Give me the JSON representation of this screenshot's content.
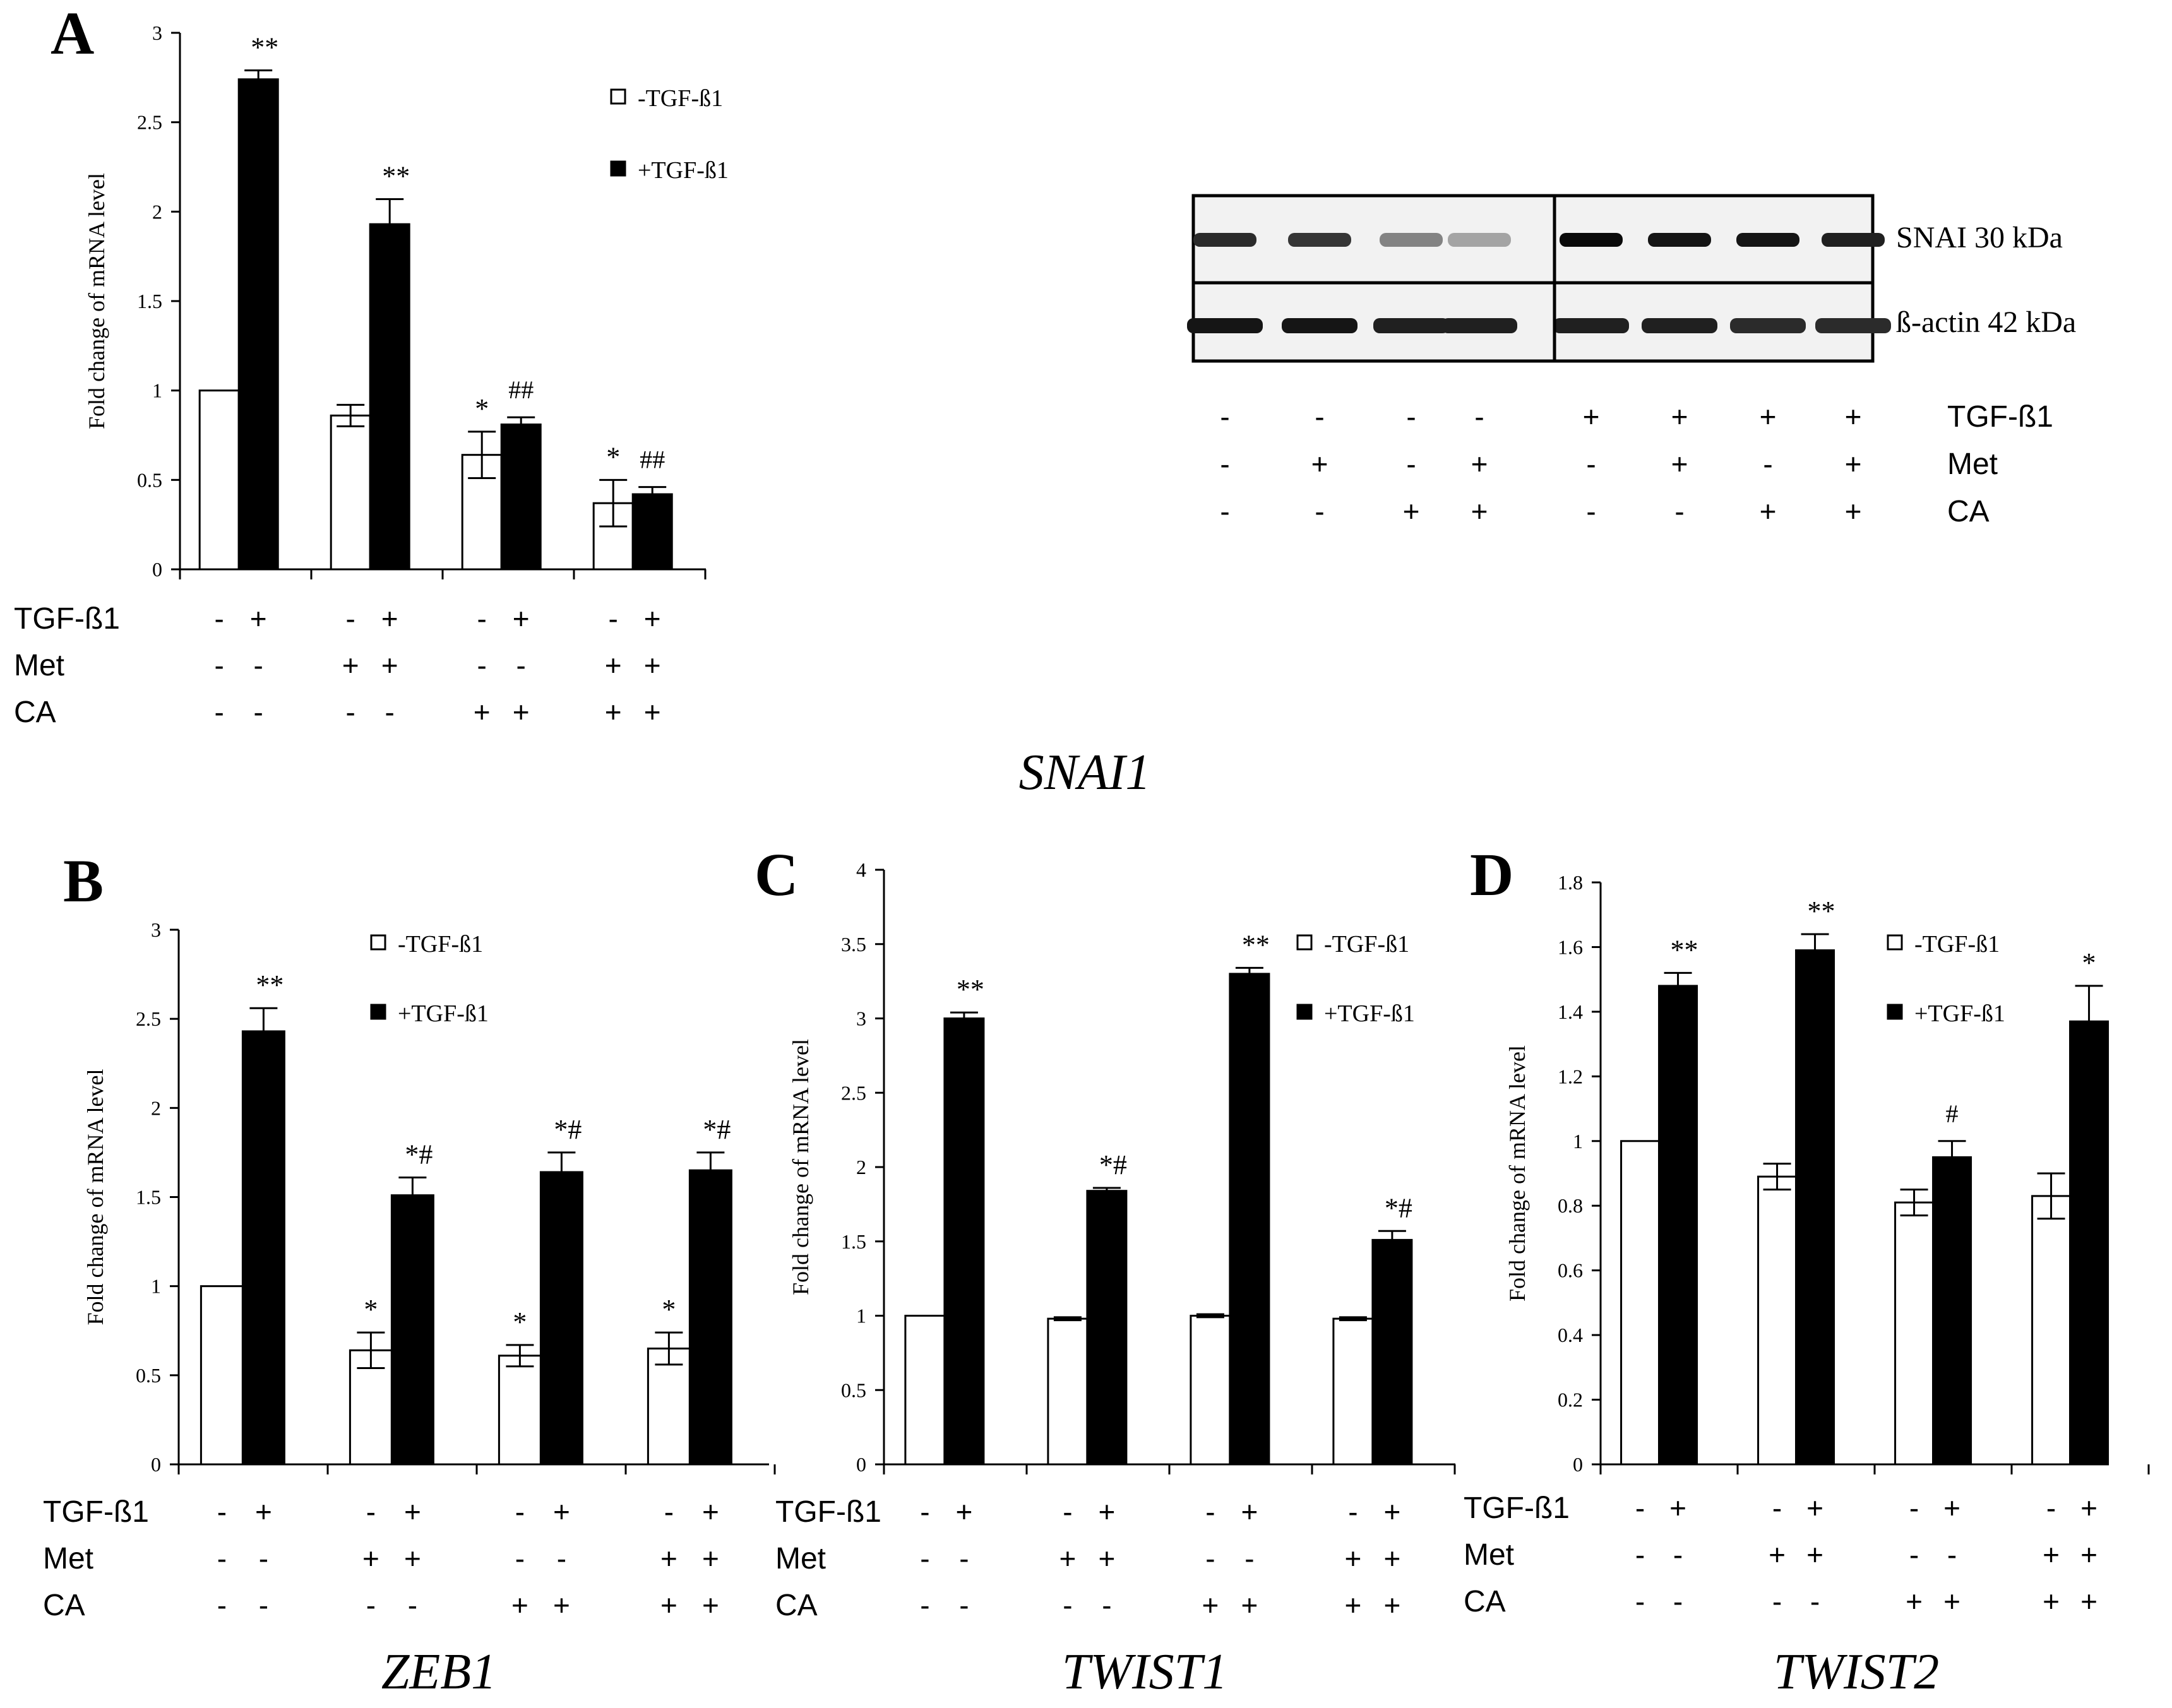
{
  "chart_data": [
    {
      "panel": "A",
      "type": "bar",
      "title": "SNAI1",
      "ylabel": "Fold change of mRNA level",
      "ylim": [
        0,
        3
      ],
      "yticks": [
        "0",
        "0.5",
        "1",
        "1.5",
        "2",
        "2.5",
        "3"
      ],
      "legend": [
        "-TGF-ß1",
        "+TGF-ß1"
      ],
      "legend_position": "top-right",
      "series": [
        {
          "name": "-TGF-ß1",
          "color": "#ffffff",
          "values": [
            1.0,
            0.86,
            0.64,
            0.37
          ],
          "errors": [
            0,
            0.06,
            0.13,
            0.13
          ],
          "annotations": [
            "",
            "",
            "*",
            "*"
          ]
        },
        {
          "name": "+TGF-ß1",
          "color": "#000000",
          "values": [
            2.74,
            1.93,
            0.81,
            0.42
          ],
          "errors": [
            0.05,
            0.14,
            0.04,
            0.04
          ],
          "annotations": [
            "**",
            "**",
            "##",
            "##"
          ]
        }
      ],
      "conditions": [
        {
          "label": "TGF-ß1",
          "marks": [
            "-",
            "+",
            "-",
            "+",
            "-",
            "+",
            "-",
            "+"
          ]
        },
        {
          "label": "Met",
          "marks": [
            "-",
            "-",
            "+",
            "+",
            "-",
            "-",
            "+",
            "+"
          ]
        },
        {
          "label": "CA",
          "marks": [
            "-",
            "-",
            "-",
            "-",
            "+",
            "+",
            "+",
            "+"
          ]
        }
      ]
    },
    {
      "panel": "B",
      "type": "bar",
      "title": "ZEB1",
      "ylabel": "Fold change of mRNA level",
      "ylim": [
        0,
        3
      ],
      "yticks": [
        "0",
        "0.5",
        "1",
        "1.5",
        "2",
        "2.5",
        "3"
      ],
      "legend": [
        "-TGF-ß1",
        "+TGF-ß1"
      ],
      "legend_position": "top-right",
      "series": [
        {
          "name": "-TGF-ß1",
          "color": "#ffffff",
          "values": [
            1.0,
            0.64,
            0.61,
            0.65
          ],
          "errors": [
            0,
            0.1,
            0.06,
            0.09
          ],
          "annotations": [
            "",
            "*",
            "*",
            "*"
          ]
        },
        {
          "name": "+TGF-ß1",
          "color": "#000000",
          "values": [
            2.43,
            1.51,
            1.64,
            1.65
          ],
          "errors": [
            0.13,
            0.1,
            0.11,
            0.1
          ],
          "annotations": [
            "**",
            "*#",
            "*#",
            "*#"
          ]
        }
      ],
      "conditions": [
        {
          "label": "TGF-ß1",
          "marks": [
            "-",
            "+",
            "-",
            "+",
            "-",
            "+",
            "-",
            "+"
          ]
        },
        {
          "label": "Met",
          "marks": [
            "-",
            "-",
            "+",
            "+",
            "-",
            "-",
            "+",
            "+"
          ]
        },
        {
          "label": "CA",
          "marks": [
            "-",
            "-",
            "-",
            "-",
            "+",
            "+",
            "+",
            "+"
          ]
        }
      ]
    },
    {
      "panel": "C",
      "type": "bar",
      "title": "TWIST1",
      "ylabel": "Fold change of mRNA level",
      "ylim": [
        0,
        4
      ],
      "yticks": [
        "0",
        "0.5",
        "1",
        "1.5",
        "2",
        "2.5",
        "3",
        "3.5",
        "4"
      ],
      "legend": [
        "-TGF-ß1",
        "+TGF-ß1"
      ],
      "legend_position": "top-right",
      "series": [
        {
          "name": "-TGF-ß1",
          "color": "#ffffff",
          "values": [
            1.0,
            0.98,
            1.0,
            0.98
          ],
          "errors": [
            0,
            0.01,
            0.01,
            0.01
          ],
          "annotations": [
            "",
            "",
            "",
            ""
          ]
        },
        {
          "name": "+TGF-ß1",
          "color": "#000000",
          "values": [
            3.0,
            1.84,
            3.3,
            1.51
          ],
          "errors": [
            0.04,
            0.02,
            0.04,
            0.06
          ],
          "annotations": [
            "**",
            "*#",
            "**",
            "*#"
          ]
        }
      ],
      "conditions": [
        {
          "label": "TGF-ß1",
          "marks": [
            "-",
            "+",
            "-",
            "+",
            "-",
            "+",
            "-",
            "+"
          ]
        },
        {
          "label": "Met",
          "marks": [
            "-",
            "-",
            "+",
            "+",
            "-",
            "-",
            "+",
            "+"
          ]
        },
        {
          "label": "CA",
          "marks": [
            "-",
            "-",
            "-",
            "-",
            "+",
            "+",
            "+",
            "+"
          ]
        }
      ]
    },
    {
      "panel": "D",
      "type": "bar",
      "title": "TWIST2",
      "ylabel": "Fold change of mRNA level",
      "ylim": [
        0,
        1.8
      ],
      "yticks": [
        "0",
        "0.2",
        "0.4",
        "0.6",
        "0.8",
        "1",
        "1.2",
        "1.4",
        "1.6",
        "1.8"
      ],
      "legend": [
        "-TGF-ß1",
        "+TGF-ß1"
      ],
      "legend_position": "top-right",
      "series": [
        {
          "name": "-TGF-ß1",
          "color": "#ffffff",
          "values": [
            1.0,
            0.89,
            0.81,
            0.83
          ],
          "errors": [
            0,
            0.04,
            0.04,
            0.07
          ],
          "annotations": [
            "",
            "",
            "",
            ""
          ]
        },
        {
          "name": "+TGF-ß1",
          "color": "#000000",
          "values": [
            1.48,
            1.59,
            0.95,
            1.37
          ],
          "errors": [
            0.04,
            0.05,
            0.05,
            0.11
          ],
          "annotations": [
            "**",
            "**",
            "#",
            "*"
          ]
        }
      ],
      "conditions": [
        {
          "label": "TGF-ß1",
          "marks": [
            "-",
            "+",
            "-",
            "+",
            "-",
            "+",
            "-",
            "+"
          ]
        },
        {
          "label": "Met",
          "marks": [
            "-",
            "-",
            "+",
            "+",
            "-",
            "-",
            "+",
            "+"
          ]
        },
        {
          "label": "CA",
          "marks": [
            "-",
            "-",
            "-",
            "-",
            "+",
            "+",
            "+",
            "+"
          ]
        }
      ]
    }
  ],
  "western_blot": {
    "bands": [
      {
        "label": "SNAI  30 kDa",
        "intensities": [
          0.85,
          0.8,
          0.45,
          0.3,
          1.0,
          0.95,
          0.95,
          0.9
        ]
      },
      {
        "label": "ß-actin 42 kDa",
        "intensities": [
          0.95,
          0.95,
          0.9,
          0.9,
          0.9,
          0.9,
          0.85,
          0.85
        ]
      }
    ],
    "conditions": [
      {
        "label": "TGF-ß1",
        "marks": [
          "-",
          "-",
          "-",
          "-",
          "+",
          "+",
          "+",
          "+"
        ]
      },
      {
        "label": "Met",
        "marks": [
          "-",
          "+",
          "-",
          "+",
          "-",
          "+",
          "-",
          "+"
        ]
      },
      {
        "label": "CA",
        "marks": [
          "-",
          "-",
          "+",
          "+",
          "-",
          "-",
          "+",
          "+"
        ]
      }
    ]
  }
}
